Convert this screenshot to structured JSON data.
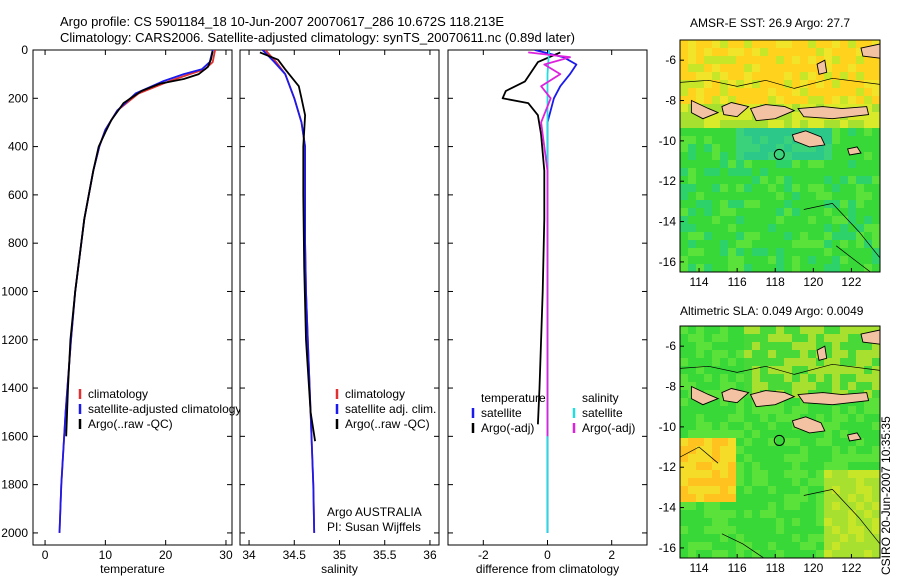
{
  "titles": {
    "line1": "Argo profile: CS 5901184_18 10-Jun-2007 20070617_286 10.672S 118.213E",
    "line2": "Climatology: CARS2006. Satellite-adjusted climatology: synTS_20070611.nc (0.89d later)",
    "sst_map": "AMSR-E SST: 26.9 Argo: 27.7",
    "sla_map": "Altimetric SLA: 0.049 Argo: 0.0049",
    "side": "CSIRO 20-Jun-2007 10:35:35"
  },
  "colors": {
    "climatology": "#e03030",
    "satellite": "#1a1aee",
    "argo": "#000000",
    "salinity_sat": "#22dddd",
    "salinity_argo": "#dd22dd"
  },
  "chart_data": [
    {
      "type": "line",
      "xlabel": "temperature",
      "ylabel": "",
      "xlim": [
        -2,
        31
      ],
      "ylim": [
        2050,
        0
      ],
      "xticks": [
        0,
        10,
        20,
        30
      ],
      "yticks": [
        0,
        200,
        400,
        600,
        800,
        1000,
        1200,
        1400,
        1600,
        1800,
        2000
      ],
      "legend": [
        "climatology",
        "satellite-adjusted climatology",
        "Argo(..raw -QC)"
      ],
      "legend_position": "bottom-right",
      "series": [
        {
          "name": "climatology",
          "color": "#e03030",
          "x": [
            28.2,
            27.8,
            26.5,
            24.0,
            20.5,
            15.5,
            12.0,
            10.0,
            9.0,
            8.0,
            6.5,
            5.0,
            4.3,
            3.4,
            2.7,
            2.4
          ],
          "y": [
            0,
            50,
            80,
            100,
            130,
            180,
            250,
            330,
            400,
            500,
            700,
            1000,
            1200,
            1500,
            1800,
            2000
          ]
        },
        {
          "name": "satellite-adjusted climatology",
          "color": "#1a1aee",
          "x": [
            27.8,
            27.3,
            26.0,
            23.0,
            19.5,
            15.0,
            12.0,
            10.0,
            9.0,
            8.0,
            6.5,
            5.0,
            4.3,
            3.4,
            2.7,
            2.4
          ],
          "y": [
            0,
            50,
            80,
            100,
            130,
            180,
            250,
            330,
            400,
            500,
            700,
            1000,
            1200,
            1500,
            1800,
            2000
          ]
        },
        {
          "name": "Argo(..raw -QC)",
          "color": "#000000",
          "x": [
            27.8,
            27.5,
            27.0,
            25.5,
            23.0,
            19.0,
            16.0,
            13.0,
            11.0,
            10.0,
            8.9,
            8.0,
            6.5,
            5.0,
            4.2,
            3.8,
            3.5
          ],
          "y": [
            5,
            40,
            70,
            100,
            120,
            140,
            170,
            220,
            290,
            340,
            400,
            500,
            700,
            1000,
            1200,
            1400,
            1600
          ]
        }
      ]
    },
    {
      "type": "line",
      "xlabel": "salinity",
      "ylabel": "",
      "xlim": [
        33.9,
        36.1
      ],
      "ylim": [
        2050,
        0
      ],
      "xticks": [
        34,
        34.5,
        35,
        35.5,
        36
      ],
      "legend": [
        "climatology",
        "satellite adj. clim.",
        "Argo(..raw -QC)"
      ],
      "legend_position": "bottom-right",
      "annotation": [
        "Argo AUSTRALIA",
        "PI: Susan Wijffels"
      ],
      "series": [
        {
          "name": "climatology",
          "color": "#e03030",
          "x": [
            34.18,
            34.3,
            34.4,
            34.5,
            34.58,
            34.62,
            34.62,
            34.62,
            34.63,
            34.65,
            34.68,
            34.71,
            34.72
          ],
          "y": [
            0,
            50,
            100,
            200,
            300,
            400,
            600,
            800,
            1000,
            1200,
            1500,
            1800,
            2000
          ]
        },
        {
          "name": "satellite adj. clim.",
          "color": "#1a1aee",
          "x": [
            34.15,
            34.28,
            34.4,
            34.5,
            34.58,
            34.62,
            34.62,
            34.62,
            34.63,
            34.65,
            34.68,
            34.71,
            34.72
          ],
          "y": [
            0,
            50,
            100,
            200,
            300,
            400,
            600,
            800,
            1000,
            1200,
            1500,
            1800,
            2000
          ]
        },
        {
          "name": "Argo(..raw -QC)",
          "color": "#000000",
          "x": [
            34.12,
            34.32,
            34.4,
            34.55,
            34.58,
            34.62,
            34.6,
            34.6,
            34.61,
            34.63,
            34.68,
            34.73
          ],
          "y": [
            10,
            40,
            80,
            150,
            200,
            270,
            400,
            600,
            900,
            1200,
            1500,
            1620
          ]
        }
      ]
    },
    {
      "type": "line",
      "xlabel": "difference from climatology",
      "ylabel": "",
      "xlim": [
        -3.1,
        3.1
      ],
      "ylim": [
        2050,
        0
      ],
      "xticks": [
        -2,
        0,
        2
      ],
      "legend": [
        "temperature",
        "satellite",
        "Argo(-adj)",
        "salinity",
        "satellite",
        "Argo(-adj)"
      ],
      "legend_position": "bottom-center",
      "series": [
        {
          "name": "satellite",
          "color": "#1a1aee",
          "x": [
            -0.4,
            0.5,
            0.9,
            0.7,
            0.4,
            0.2,
            0.0,
            0.0,
            0.0
          ],
          "y": [
            0,
            30,
            60,
            100,
            150,
            200,
            300,
            600,
            2000
          ]
        },
        {
          "name": "Argo(-adj)",
          "color": "#000000",
          "x": [
            0.4,
            -0.3,
            -0.7,
            -1.3,
            -1.4,
            -0.6,
            -0.3,
            -0.2,
            -0.1,
            -0.1,
            -0.15,
            -0.2,
            -0.25,
            -0.3
          ],
          "y": [
            10,
            50,
            130,
            170,
            200,
            220,
            270,
            350,
            500,
            700,
            1000,
            1200,
            1400,
            1550
          ]
        },
        {
          "name": "satellite",
          "color": "#22dddd",
          "x": [
            0.05,
            0.0,
            0.0,
            0.0,
            0.0,
            0.0
          ],
          "y": [
            0,
            100,
            300,
            600,
            1000,
            2000
          ]
        },
        {
          "name": "Argo(-adj)",
          "color": "#dd22dd",
          "x": [
            -0.6,
            0.7,
            -0.1,
            0.4,
            -0.2,
            0.1,
            -0.2,
            -0.1,
            0.0,
            0.0,
            0.0
          ],
          "y": [
            10,
            30,
            60,
            100,
            150,
            200,
            300,
            400,
            500,
            800,
            1600
          ]
        }
      ]
    },
    {
      "type": "heatmap",
      "title": "AMSR-E SST: 26.9 Argo: 27.7",
      "xlim": [
        113,
        123.5
      ],
      "ylim": [
        -16.5,
        -5
      ],
      "xticks": [
        114,
        116,
        118,
        120,
        122
      ],
      "yticks": [
        -6,
        -8,
        -10,
        -12,
        -14,
        -16
      ],
      "marker": {
        "lon": 118.213,
        "lat": -10.672
      }
    },
    {
      "type": "heatmap",
      "title": "Altimetric SLA: 0.049 Argo: 0.0049",
      "xlim": [
        113,
        123.5
      ],
      "ylim": [
        -16.5,
        -5
      ],
      "xticks": [
        114,
        116,
        118,
        120,
        122
      ],
      "yticks": [
        -6,
        -8,
        -10,
        -12,
        -14,
        -16
      ],
      "marker": {
        "lon": 118.213,
        "lat": -10.672
      }
    }
  ]
}
